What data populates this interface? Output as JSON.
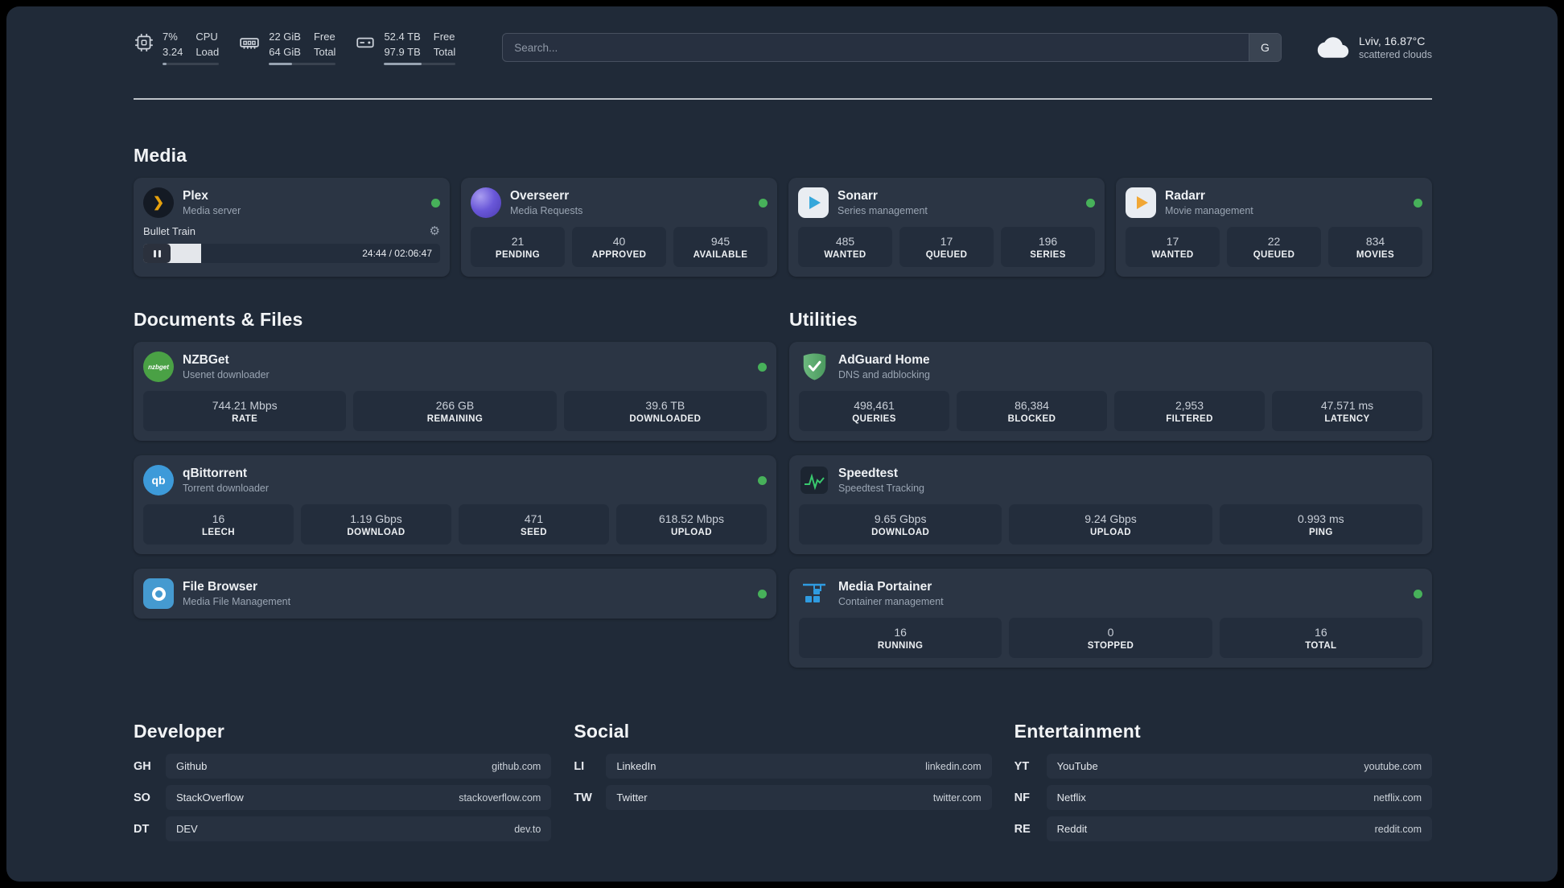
{
  "topbar": {
    "cpu": {
      "line1": "7%",
      "line2": "3.24",
      "label1": "CPU",
      "label2": "Load",
      "percent": 7
    },
    "ram": {
      "line1": "22 GiB",
      "line2": "64 GiB",
      "label1": "Free",
      "label2": "Total",
      "percent": 34
    },
    "disk": {
      "line1": "52.4 TB",
      "line2": "97.9 TB",
      "label1": "Free",
      "label2": "Total",
      "percent": 53
    },
    "search": {
      "placeholder": "Search...",
      "engine": "G"
    },
    "weather": {
      "location": "Lviv, 16.87°C",
      "condition": "scattered clouds"
    }
  },
  "sections": {
    "media": "Media",
    "documents": "Documents & Files",
    "utilities": "Utilities"
  },
  "apps": {
    "plex": {
      "name": "Plex",
      "desc": "Media server",
      "now_playing": "Bullet Train",
      "time": "24:44 / 02:06:47",
      "progress_percent": 19.5
    },
    "overseerr": {
      "name": "Overseerr",
      "desc": "Media Requests",
      "stats": [
        {
          "value": "21",
          "label": "PENDING"
        },
        {
          "value": "40",
          "label": "APPROVED"
        },
        {
          "value": "945",
          "label": "AVAILABLE"
        }
      ]
    },
    "sonarr": {
      "name": "Sonarr",
      "desc": "Series management",
      "stats": [
        {
          "value": "485",
          "label": "WANTED"
        },
        {
          "value": "17",
          "label": "QUEUED"
        },
        {
          "value": "196",
          "label": "SERIES"
        }
      ]
    },
    "radarr": {
      "name": "Radarr",
      "desc": "Movie management",
      "stats": [
        {
          "value": "17",
          "label": "WANTED"
        },
        {
          "value": "22",
          "label": "QUEUED"
        },
        {
          "value": "834",
          "label": "MOVIES"
        }
      ]
    },
    "nzbget": {
      "name": "NZBGet",
      "desc": "Usenet downloader",
      "icon_text": "nzbget",
      "stats": [
        {
          "value": "744.21 Mbps",
          "label": "RATE"
        },
        {
          "value": "266 GB",
          "label": "REMAINING"
        },
        {
          "value": "39.6 TB",
          "label": "DOWNLOADED"
        }
      ]
    },
    "qbittorrent": {
      "name": "qBittorrent",
      "desc": "Torrent downloader",
      "icon_text": "qb",
      "stats": [
        {
          "value": "16",
          "label": "LEECH"
        },
        {
          "value": "1.19 Gbps",
          "label": "DOWNLOAD"
        },
        {
          "value": "471",
          "label": "SEED"
        },
        {
          "value": "618.52 Mbps",
          "label": "UPLOAD"
        }
      ]
    },
    "filebrowser": {
      "name": "File Browser",
      "desc": "Media File Management"
    },
    "adguard": {
      "name": "AdGuard Home",
      "desc": "DNS and adblocking",
      "stats": [
        {
          "value": "498,461",
          "label": "QUERIES"
        },
        {
          "value": "86,384",
          "label": "BLOCKED"
        },
        {
          "value": "2,953",
          "label": "FILTERED"
        },
        {
          "value": "47.571 ms",
          "label": "LATENCY"
        }
      ]
    },
    "speedtest": {
      "name": "Speedtest",
      "desc": "Speedtest Tracking",
      "stats": [
        {
          "value": "9.65 Gbps",
          "label": "DOWNLOAD"
        },
        {
          "value": "9.24 Gbps",
          "label": "UPLOAD"
        },
        {
          "value": "0.993 ms",
          "label": "PING"
        }
      ]
    },
    "portainer": {
      "name": "Media Portainer",
      "desc": "Container management",
      "stats": [
        {
          "value": "16",
          "label": "RUNNING"
        },
        {
          "value": "0",
          "label": "STOPPED"
        },
        {
          "value": "16",
          "label": "TOTAL"
        }
      ]
    }
  },
  "bookmarks": [
    {
      "title": "Developer",
      "items": [
        {
          "abbr": "GH",
          "name": "Github",
          "url": "github.com"
        },
        {
          "abbr": "SO",
          "name": "StackOverflow",
          "url": "stackoverflow.com"
        },
        {
          "abbr": "DT",
          "name": "DEV",
          "url": "dev.to"
        }
      ]
    },
    {
      "title": "Social",
      "items": [
        {
          "abbr": "LI",
          "name": "LinkedIn",
          "url": "linkedin.com"
        },
        {
          "abbr": "TW",
          "name": "Twitter",
          "url": "twitter.com"
        }
      ]
    },
    {
      "title": "Entertainment",
      "items": [
        {
          "abbr": "YT",
          "name": "YouTube",
          "url": "youtube.com"
        },
        {
          "abbr": "NF",
          "name": "Netflix",
          "url": "netflix.com"
        },
        {
          "abbr": "RE",
          "name": "Reddit",
          "url": "reddit.com"
        }
      ]
    }
  ],
  "icons": {
    "gear": "⚙",
    "plex_chevron": "❯"
  }
}
